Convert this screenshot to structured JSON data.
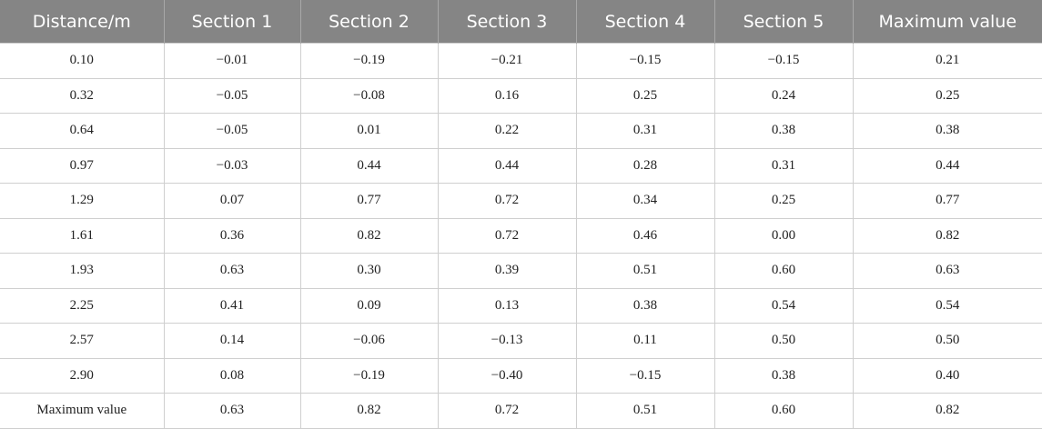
{
  "table": {
    "header": [
      "Distance/m",
      "Section 1",
      "Section 2",
      "Section 3",
      "Section 4",
      "Section 5",
      "Maximum value"
    ],
    "rows": [
      [
        "0.10",
        "−0.01",
        "−0.19",
        "−0.21",
        "−0.15",
        "−0.15",
        "0.21"
      ],
      [
        "0.32",
        "−0.05",
        "−0.08",
        "0.16",
        "0.25",
        "0.24",
        "0.25"
      ],
      [
        "0.64",
        "−0.05",
        "0.01",
        "0.22",
        "0.31",
        "0.38",
        "0.38"
      ],
      [
        "0.97",
        "−0.03",
        "0.44",
        "0.44",
        "0.28",
        "0.31",
        "0.44"
      ],
      [
        "1.29",
        "0.07",
        "0.77",
        "0.72",
        "0.34",
        "0.25",
        "0.77"
      ],
      [
        "1.61",
        "0.36",
        "0.82",
        "0.72",
        "0.46",
        "0.00",
        "0.82"
      ],
      [
        "1.93",
        "0.63",
        "0.30",
        "0.39",
        "0.51",
        "0.60",
        "0.63"
      ],
      [
        "2.25",
        "0.41",
        "0.09",
        "0.13",
        "0.38",
        "0.54",
        "0.54"
      ],
      [
        "2.57",
        "0.14",
        "−0.06",
        "−0.13",
        "0.11",
        "0.50",
        "0.50"
      ],
      [
        "2.90",
        "0.08",
        "−0.19",
        "−0.40",
        "−0.15",
        "0.38",
        "0.40"
      ],
      [
        "Maximum value",
        "0.63",
        "0.82",
        "0.72",
        "0.51",
        "0.60",
        "0.82"
      ]
    ]
  }
}
